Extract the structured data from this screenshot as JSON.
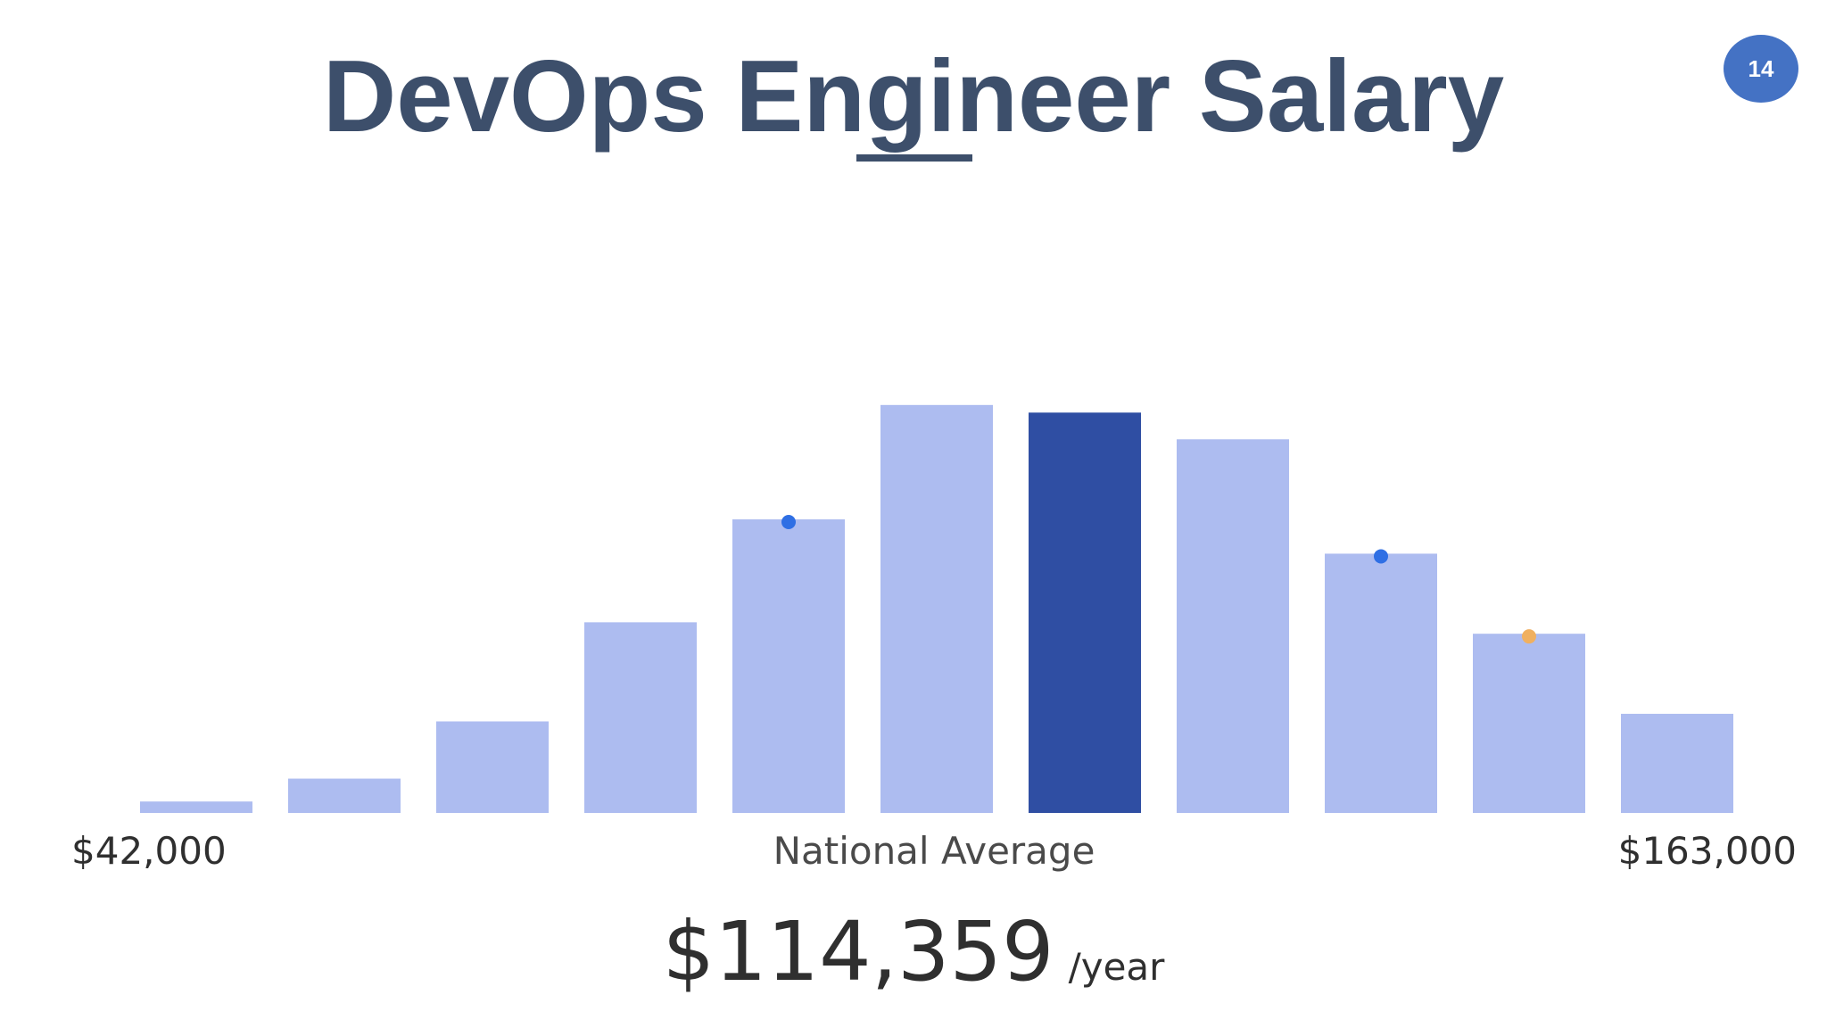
{
  "slide": {
    "number": "14",
    "badge_color": "#4472c4"
  },
  "chart_data": {
    "type": "bar",
    "title": "DevOps Engineer Salary",
    "x_range_labels": {
      "min": "$42,000",
      "max": "$163,000"
    },
    "caption": "National Average",
    "average": {
      "value": "$114,359",
      "unit": "/year"
    },
    "values": [
      3,
      9,
      24,
      50,
      77,
      107,
      105,
      98,
      68,
      47,
      26
    ],
    "highlight_index": 6,
    "markers": [
      {
        "bar_index": 4,
        "color": "#2f6fe4"
      },
      {
        "bar_index": 8,
        "color": "#2f6fe4"
      },
      {
        "bar_index": 9,
        "color": "#f0b060"
      }
    ],
    "colors": {
      "bar": "#adbcf0",
      "highlight": "#2f4ea3",
      "title": "#3d4f6b"
    },
    "ylim": [
      0,
      110
    ],
    "grid": false,
    "legend": "none"
  }
}
